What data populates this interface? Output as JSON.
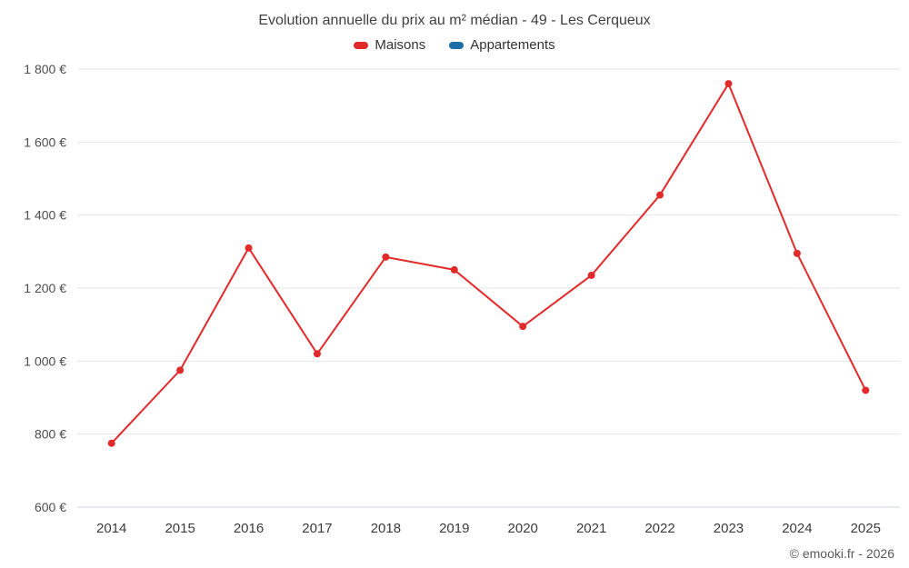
{
  "chart_data": {
    "type": "line",
    "title": "Evolution annuelle du prix au m² médian - 49 - Les Cerqueux",
    "categories": [
      "2014",
      "2015",
      "2016",
      "2017",
      "2018",
      "2019",
      "2020",
      "2021",
      "2022",
      "2023",
      "2024",
      "2025"
    ],
    "series": [
      {
        "name": "Maisons",
        "color": "#e32a2a",
        "values": [
          775,
          975,
          1310,
          1020,
          1285,
          1250,
          1095,
          1235,
          1455,
          1760,
          1295,
          920
        ]
      },
      {
        "name": "Appartements",
        "color": "#1b6ea5",
        "values": []
      }
    ],
    "ylim": [
      600,
      1800
    ],
    "yticks": [
      600,
      800,
      1000,
      1200,
      1400,
      1600,
      1800
    ],
    "ytick_suffix": " €",
    "grid": true,
    "legend_position": "top",
    "grid_color": "#e6e6e6",
    "axis_color": "#ccd6eb"
  },
  "footer": {
    "copyright": "© emooki.fr - 2026"
  }
}
